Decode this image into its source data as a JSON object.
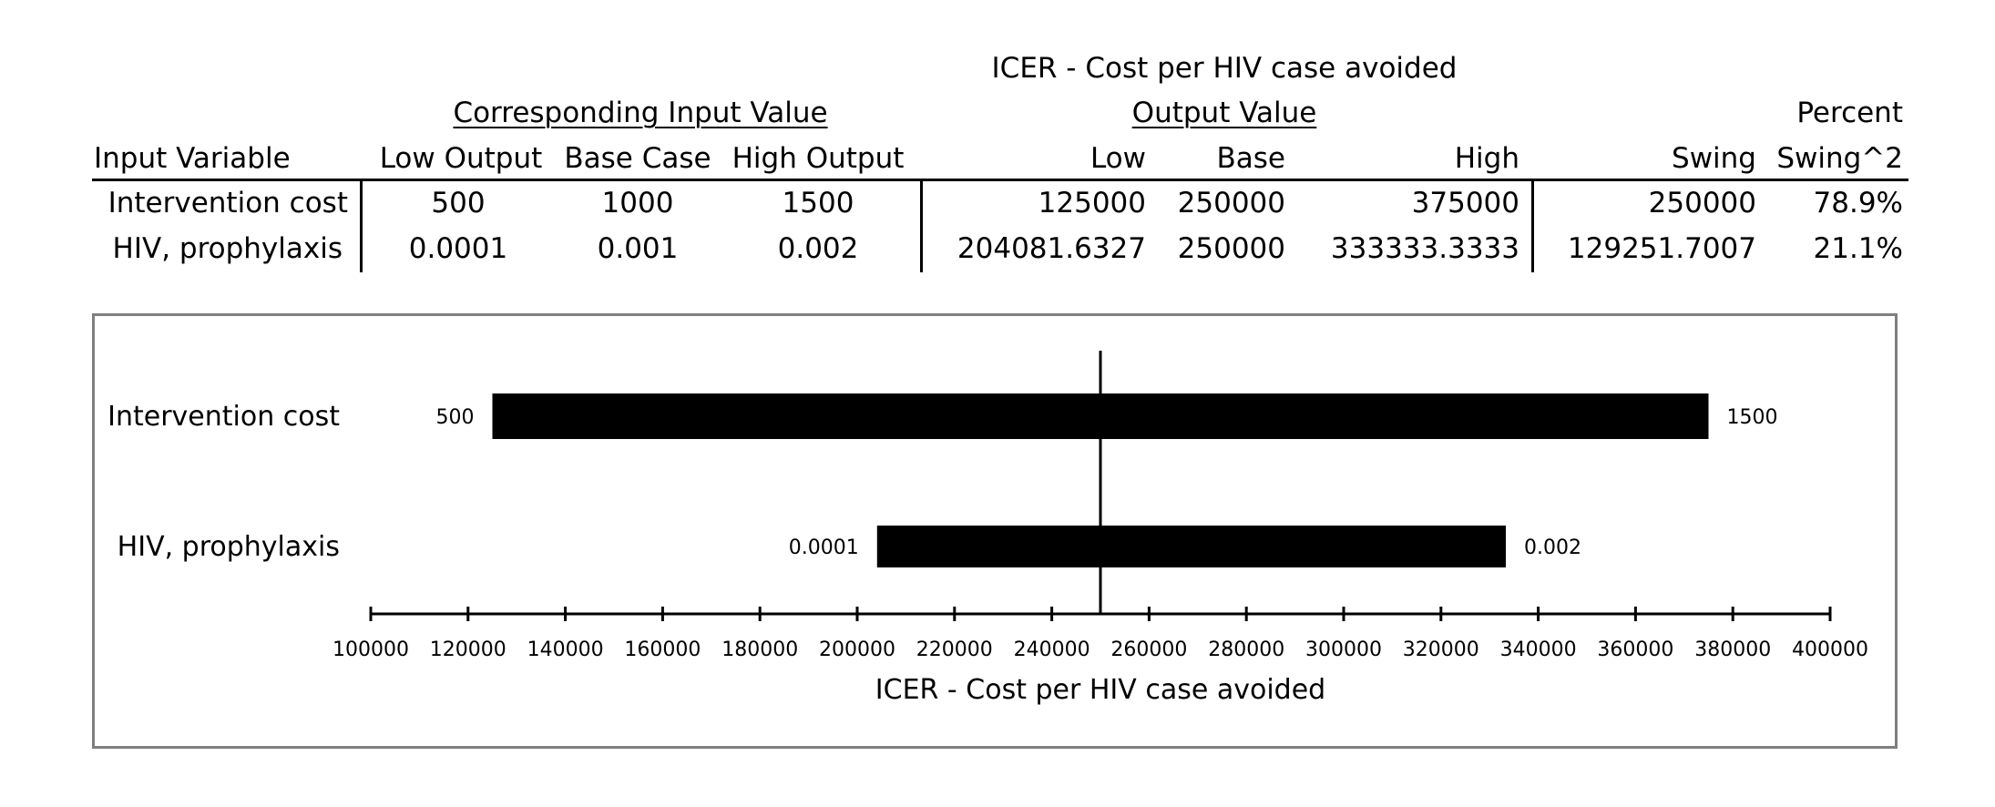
{
  "table": {
    "title": "ICER - Cost per HIV case avoided",
    "group_input": "Corresponding Input Value",
    "group_output": "Output Value",
    "percent_label": "Percent",
    "headers": [
      "Input Variable",
      "Low Output",
      "Base Case",
      "High Output",
      "Low",
      "Base",
      "High",
      "Swing",
      "Swing^2"
    ],
    "rows": [
      [
        "Intervention cost",
        "500",
        "1000",
        "1500",
        "125000",
        "250000",
        "375000",
        "250000",
        "78.9%"
      ],
      [
        "HIV, prophylaxis",
        "0.0001",
        "0.001",
        "0.002",
        "204081.6327",
        "250000",
        "333333.3333",
        "129251.7007",
        "21.1%"
      ]
    ]
  },
  "chart_data": {
    "type": "bar",
    "orientation": "horizontal-tornado",
    "xlabel": "ICER - Cost per HIV case avoided",
    "xlim": [
      100000,
      400000
    ],
    "tick_step": 20000,
    "base_value": 250000,
    "x_ticks": [
      "100000",
      "120000",
      "140000",
      "160000",
      "180000",
      "200000",
      "220000",
      "240000",
      "260000",
      "280000",
      "300000",
      "320000",
      "340000",
      "360000",
      "380000",
      "400000"
    ],
    "bars": [
      {
        "category": "Intervention cost",
        "low": 125000,
        "high": 375000,
        "low_label": "500",
        "high_label": "1500"
      },
      {
        "category": "HIV, prophylaxis",
        "low": 204081.6327,
        "high": 333333.3333,
        "low_label": "0.0001",
        "high_label": "0.002"
      }
    ],
    "bar_color": "#000000",
    "frame_color": "#7f7f7f"
  }
}
